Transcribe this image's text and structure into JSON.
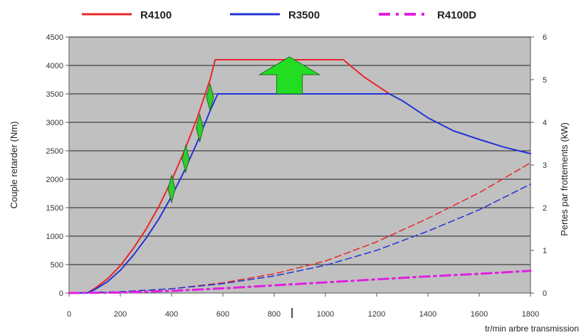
{
  "chart_data": {
    "type": "line",
    "title": "",
    "xlabel": "tr/min arbre transmission",
    "ylabel": "Couple retarder (Nm)",
    "y2label": "Pertes par frottements (kW)",
    "xlim": [
      0,
      1800
    ],
    "ylim": [
      0,
      4500
    ],
    "y2lim": [
      0,
      6
    ],
    "x_ticks": [
      0,
      200,
      400,
      600,
      800,
      1000,
      1200,
      1400,
      1600,
      1800
    ],
    "y_ticks": [
      0,
      500,
      1000,
      1500,
      2000,
      2500,
      3000,
      3500,
      4000,
      4500
    ],
    "y2_ticks": [
      0,
      1,
      2,
      3,
      4,
      5,
      6
    ],
    "grid": true,
    "legend_position": "top",
    "legend": [
      {
        "name": "R4100",
        "color": "#e8262b",
        "style": "solid"
      },
      {
        "name": "R3500",
        "color": "#2233d6",
        "style": "solid"
      },
      {
        "name": "R4100D",
        "color": "#e020e0",
        "style": "dashdot"
      }
    ],
    "series": [
      {
        "name": "R4100",
        "axis": "left",
        "color": "#e8262b",
        "style": "solid",
        "x": [
          0,
          70,
          100,
          150,
          200,
          250,
          300,
          350,
          400,
          450,
          500,
          550,
          570,
          1070,
          1150,
          1250
        ],
        "y": [
          0,
          0,
          80,
          250,
          480,
          780,
          1120,
          1520,
          1980,
          2500,
          3080,
          3750,
          4100,
          4100,
          3800,
          3500
        ]
      },
      {
        "name": "R3500",
        "axis": "left",
        "color": "#2233d6",
        "style": "solid",
        "x": [
          0,
          70,
          100,
          150,
          200,
          250,
          300,
          350,
          400,
          450,
          500,
          550,
          580,
          1250,
          1300,
          1400,
          1500,
          1600,
          1700,
          1800
        ],
        "y": [
          0,
          0,
          60,
          200,
          400,
          660,
          960,
          1300,
          1700,
          2150,
          2650,
          3200,
          3500,
          3500,
          3380,
          3080,
          2850,
          2700,
          2560,
          2450
        ]
      },
      {
        "name": "R4100 (pertes)",
        "axis": "right",
        "color": "#e8262b",
        "style": "dashed",
        "x": [
          0,
          200,
          400,
          600,
          800,
          1000,
          1200,
          1400,
          1600,
          1800
        ],
        "y": [
          0,
          0.03,
          0.1,
          0.24,
          0.45,
          0.75,
          1.2,
          1.75,
          2.35,
          3.05
        ]
      },
      {
        "name": "R3500 (pertes)",
        "axis": "right",
        "color": "#2233d6",
        "style": "dashed",
        "x": [
          0,
          200,
          400,
          600,
          800,
          1000,
          1200,
          1400,
          1600,
          1800
        ],
        "y": [
          0,
          0.03,
          0.1,
          0.22,
          0.4,
          0.65,
          1.0,
          1.45,
          1.95,
          2.55
        ]
      },
      {
        "name": "R4100D",
        "axis": "right",
        "color": "#e020e0",
        "style": "dashdot",
        "x": [
          0,
          200,
          400,
          600,
          800,
          1000,
          1200,
          1400,
          1600,
          1800
        ],
        "y": [
          0,
          0.01,
          0.05,
          0.11,
          0.18,
          0.25,
          0.32,
          0.39,
          0.45,
          0.52
        ]
      }
    ],
    "annotations": {
      "up_arrow": {
        "x": 860,
        "y_base": 3500,
        "y_top": 4100,
        "color": "#22dd22"
      },
      "markers": [
        {
          "x": 400,
          "y": 1830
        },
        {
          "x": 455,
          "y": 2360
        },
        {
          "x": 510,
          "y": 2900
        },
        {
          "x": 550,
          "y": 3440
        }
      ]
    }
  }
}
